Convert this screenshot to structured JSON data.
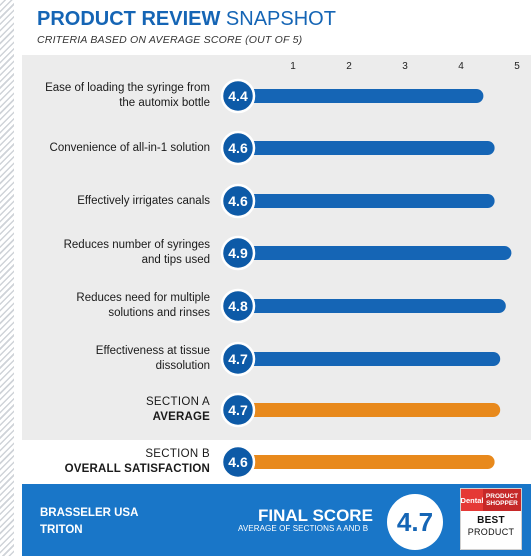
{
  "header": {
    "title_bold": "PRODUCT REVIEW",
    "title_rest": "SNAPSHOT",
    "subtitle": "CRITERIA BASED ON AVERAGE SCORE (OUT OF 5)"
  },
  "chart_data": {
    "type": "bar",
    "orientation": "horizontal",
    "ticks": [
      "1",
      "2",
      "3",
      "4",
      "5"
    ],
    "xlim": [
      0,
      5
    ],
    "grid": false,
    "categories": [
      {
        "lines": [
          "Ease of loading the syringe from",
          "the automix bottle"
        ],
        "value": 4.4,
        "label": "4.4",
        "kind": "criterion"
      },
      {
        "lines": [
          "Convenience of all-in-1 solution"
        ],
        "value": 4.6,
        "label": "4.6",
        "kind": "criterion"
      },
      {
        "lines": [
          "Effectively irrigates canals"
        ],
        "value": 4.6,
        "label": "4.6",
        "kind": "criterion"
      },
      {
        "lines": [
          "Reduces number of syringes",
          "and tips used"
        ],
        "value": 4.9,
        "label": "4.9",
        "kind": "criterion"
      },
      {
        "lines": [
          "Reduces need for multiple",
          "solutions and rinses"
        ],
        "value": 4.8,
        "label": "4.8",
        "kind": "criterion"
      },
      {
        "lines": [
          "Effectiveness at tissue",
          "dissolution"
        ],
        "value": 4.7,
        "label": "4.7",
        "kind": "criterion"
      },
      {
        "lines": [
          "SECTION A",
          "AVERAGE"
        ],
        "value": 4.7,
        "label": "4.7",
        "kind": "section-a"
      },
      {
        "lines": [
          "SECTION B",
          "OVERALL SATISFACTION"
        ],
        "value": 4.6,
        "label": "4.6",
        "kind": "section-b"
      }
    ],
    "colors": {
      "criterion": "#1565b5",
      "section-a": "#e8891c",
      "section-b": "#e8891c",
      "circle": "#0d5aa7"
    }
  },
  "footer": {
    "brand": "BRASSELER USA",
    "product": "TRITON",
    "final_title": "FINAL SCORE",
    "final_sub": "AVERAGE OF SECTIONS A AND B",
    "final_value": "4.7",
    "badge_dental": "Dental",
    "badge_ps_line1": "PRODUCT",
    "badge_ps_line2": "SHOPPER",
    "badge_best": "BEST",
    "badge_product": "PRODUCT"
  }
}
